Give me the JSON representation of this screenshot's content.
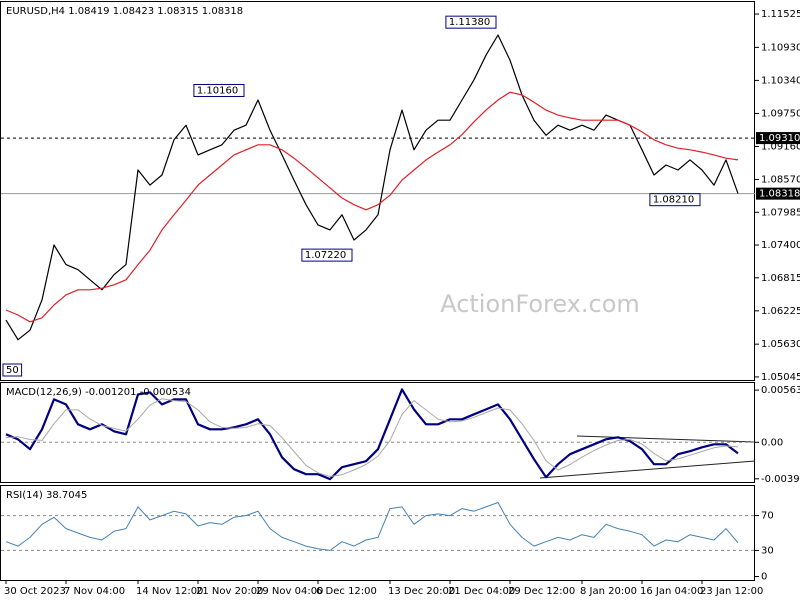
{
  "chart_data": [
    {
      "type": "line",
      "title": "EURUSD,H4  1.08419 1.08423 1.08315 1.08318",
      "watermark": "ActionForex.com",
      "categories": [
        "30 Oct 2023",
        null,
        null,
        null,
        null,
        "7 Nov 04:00",
        null,
        null,
        null,
        null,
        null,
        "14 Nov 12:00",
        null,
        null,
        null,
        null,
        "21 Nov 20:00",
        null,
        null,
        null,
        null,
        "29 Nov 04:00",
        null,
        null,
        null,
        null,
        "6 Dec 12:00",
        null,
        null,
        null,
        null,
        null,
        "13 Dec 20:00",
        null,
        null,
        null,
        null,
        "21 Dec 04:00",
        null,
        null,
        null,
        null,
        "29 Dec 12:00",
        null,
        null,
        null,
        null,
        null,
        "8 Jan 20:00",
        null,
        null,
        null,
        null,
        "16 Jan 04:00",
        null,
        null,
        null,
        null,
        "23 Jan 12:00",
        null,
        null,
        null
      ],
      "series": [
        {
          "color": "#000000",
          "width": 1.2,
          "values": [
            1.0606,
            1.0571,
            1.0588,
            1.0642,
            1.074,
            1.0705,
            1.0696,
            1.0678,
            1.066,
            1.0687,
            1.0705,
            1.0874,
            1.0847,
            1.0865,
            1.0928,
            1.0954,
            1.0901,
            1.091,
            1.0919,
            1.0945,
            1.0954,
            1.0999,
            1.0945,
            1.0901,
            1.0856,
            1.0812,
            1.0776,
            1.0767,
            1.0794,
            1.0749,
            1.0767,
            1.0794,
            1.091,
            1.0981,
            1.091,
            1.0945,
            1.0963,
            1.0963,
            1.0999,
            1.1035,
            1.1079,
            1.1115,
            1.107,
            1.1008,
            1.0963,
            1.0936,
            1.0954,
            1.0945,
            1.0954,
            1.0945,
            1.0972,
            1.0963,
            1.0954,
            1.091,
            1.0865,
            1.0883,
            1.0874,
            1.0892,
            1.0874,
            1.0847,
            1.0892,
            1.08318
          ]
        },
        {
          "color": "#e0202a",
          "width": 1.2,
          "values": [
            1.0624,
            1.0615,
            1.0603,
            1.061,
            1.0633,
            1.0651,
            1.066,
            1.066,
            1.0663,
            1.0669,
            1.0678,
            1.0705,
            1.0731,
            1.0767,
            1.0794,
            1.082,
            1.0847,
            1.0865,
            1.0883,
            1.0901,
            1.091,
            1.0919,
            1.0919,
            1.091,
            1.0895,
            1.0878,
            1.086,
            1.0842,
            1.0824,
            1.0812,
            1.0803,
            1.0812,
            1.0829,
            1.0856,
            1.0874,
            1.0892,
            1.0906,
            1.0919,
            1.0937,
            1.096,
            1.0981,
            1.0999,
            1.1013,
            1.1008,
            1.0995,
            1.0981,
            1.0972,
            1.0967,
            1.0963,
            1.0963,
            1.0963,
            1.0963,
            1.0954,
            1.0942,
            1.0928,
            1.0919,
            1.0913,
            1.091,
            1.0906,
            1.0901,
            1.0895,
            1.0892
          ]
        }
      ],
      "ylim": [
        1.0499,
        1.1174
      ],
      "yticks": [
        1.11525,
        {
          "value": 1.1093,
          "label": "1.10930"
        },
        {
          "value": 1.1034,
          "label": "1.10340"
        },
        {
          "value": 1.0975,
          "label": "1.09750"
        },
        {
          "value": 1.0916,
          "label": "1.09160"
        },
        {
          "value": 1.0857,
          "label": "1.08570"
        },
        1.07985,
        {
          "value": 1.074,
          "label": "1.07400"
        },
        1.06815,
        1.06225,
        {
          "value": 1.0563,
          "label": "1.05630"
        },
        1.05045
      ],
      "levels": [
        {
          "value": 1.0931,
          "label": "1.09310",
          "dashed": true
        },
        {
          "value": 1.08318,
          "label": "1.08318",
          "dashed": false
        }
      ],
      "annotations": [
        {
          "label": "1.11380",
          "value": 1.1138,
          "index": 41
        },
        {
          "label": "1.10160",
          "value": 1.1016,
          "index": 20
        },
        {
          "label": "1.07220",
          "value": 1.0722,
          "index": 29
        },
        {
          "label": "1.08210",
          "value": 1.0821,
          "index": 58
        },
        {
          "label": "50"
        }
      ]
    },
    {
      "type": "line",
      "title": "MACD(12,26,9) -0.001201 -0.000534",
      "series": [
        {
          "color": "#000080",
          "width": 2.2,
          "values": [
            0.00086,
            0.00032,
            -0.00075,
            0.0014,
            0.00463,
            0.00409,
            0.00194,
            0.0014,
            0.00194,
            0.00118,
            0.00086,
            0.00517,
            0.00539,
            0.00409,
            0.00463,
            0.00463,
            0.00194,
            0.0014,
            0.0014,
            0.00162,
            0.00194,
            0.00248,
            0.00086,
            -0.00162,
            -0.00291,
            -0.00345,
            -0.00345,
            -0.00398,
            -0.00269,
            -0.00237,
            -0.00205,
            -0.00075,
            0.00248,
            0.00571,
            0.00355,
            0.00194,
            0.00194,
            0.00248,
            0.00248,
            0.00302,
            0.00355,
            0.00409,
            0.00248,
            0.00032,
            -0.00183,
            -0.00377,
            -0.00237,
            -0.00129,
            -0.00075,
            -0.00022,
            0.00032,
            0.00054,
            0.00011,
            -0.00075,
            -0.00237,
            -0.00237,
            -0.00129,
            -0.00097,
            -0.00054,
            -0.00022,
            -0.00022,
            -0.0012
          ]
        },
        {
          "color": "#a9a9a9",
          "width": 1,
          "values": [
            0.0005,
            0.0006,
            0.0003,
            0.0002,
            0.002,
            0.0035,
            0.0035,
            0.0025,
            0.0018,
            0.0015,
            0.0012,
            0.0025,
            0.004,
            0.0047,
            0.0045,
            0.0044,
            0.0035,
            0.0022,
            0.0016,
            0.0015,
            0.0016,
            0.002,
            0.0018,
            0.0005,
            -0.001,
            -0.0025,
            -0.0033,
            -0.0037,
            -0.0035,
            -0.003,
            -0.0024,
            -0.0015,
            0.0002,
            0.003,
            0.0045,
            0.0035,
            0.0025,
            0.0022,
            0.0023,
            0.0027,
            0.0032,
            0.0037,
            0.0035,
            0.002,
            0.0002,
            -0.002,
            -0.003,
            -0.0024,
            -0.0016,
            -0.0009,
            -0.0003,
            0.0002,
            0.0003,
            -0.0002,
            -0.0012,
            -0.002,
            -0.0018,
            -0.0014,
            -0.001,
            -0.0006,
            -0.0004,
            -0.0005
          ]
        }
      ],
      "ylim": [
        -0.0044,
        0.0064
      ],
      "yticks": [
        0.005635,
        {
          "value": 0,
          "label": "0.00"
        },
        -0.003949
      ],
      "levels": [
        0
      ]
    },
    {
      "type": "line",
      "title": "RSI(14) 38.7045",
      "series": [
        {
          "color": "#4682b4",
          "width": 1,
          "values": [
            40,
            35,
            45,
            60,
            68,
            55,
            50,
            45,
            42,
            52,
            55,
            80,
            65,
            70,
            75,
            72,
            58,
            62,
            60,
            68,
            70,
            75,
            55,
            45,
            40,
            35,
            32,
            30,
            40,
            35,
            42,
            45,
            78,
            80,
            60,
            70,
            72,
            70,
            78,
            75,
            80,
            85,
            60,
            45,
            35,
            40,
            45,
            42,
            48,
            45,
            60,
            55,
            52,
            48,
            35,
            42,
            40,
            48,
            45,
            42,
            55,
            38.7
          ]
        }
      ],
      "ylim": [
        -4,
        104
      ],
      "yticks": [
        0,
        30,
        70
      ],
      "levels": [
        30,
        70
      ]
    }
  ]
}
